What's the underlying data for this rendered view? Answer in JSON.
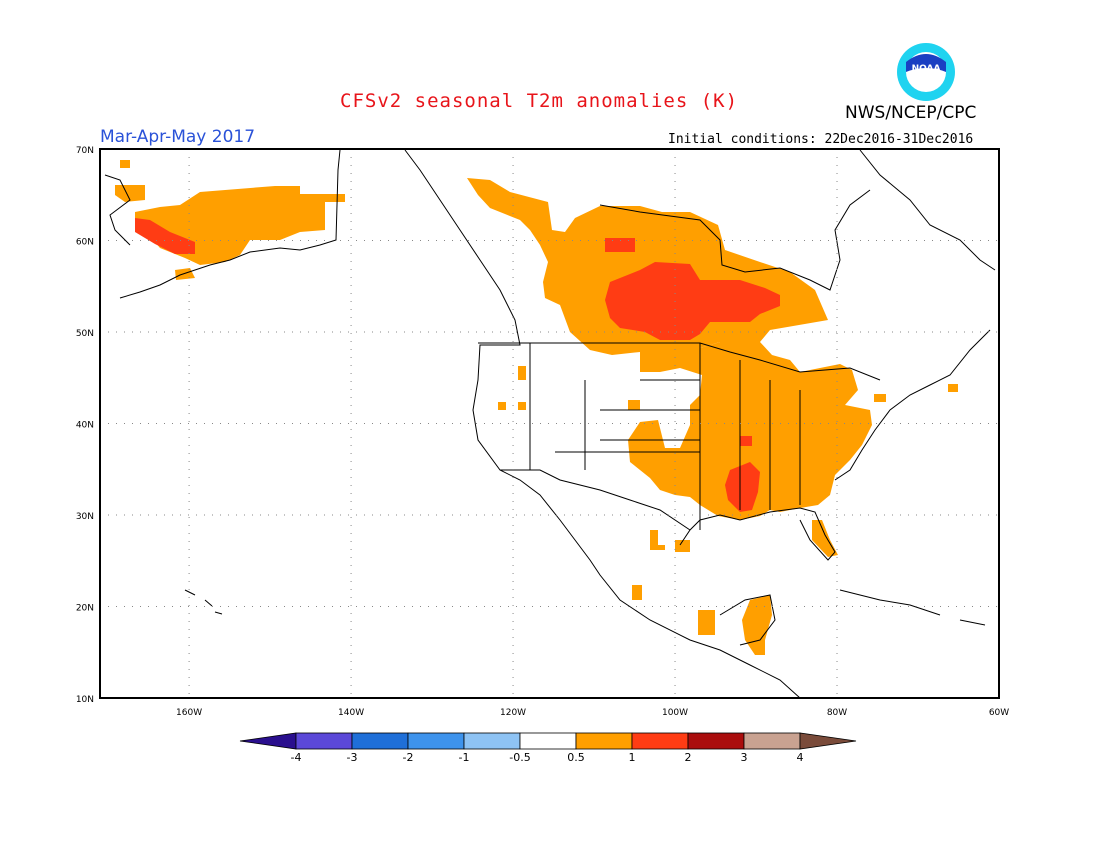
{
  "header": {
    "title": "CFSv2 seasonal T2m anomalies (K)",
    "agency": "NWS/NCEP/CPC",
    "period": "Mar-Apr-May 2017",
    "initial_conditions": "Initial conditions: 22Dec2016-31Dec2016",
    "logo_text": "NOAA"
  },
  "map": {
    "lat_labels": [
      "70N",
      "60N",
      "50N",
      "40N",
      "30N",
      "20N",
      "10N"
    ],
    "lon_labels": [
      "160W",
      "140W",
      "120W",
      "100W",
      "80W",
      "60W"
    ],
    "lon_range": [
      -171,
      -60
    ],
    "lat_range": [
      10,
      70
    ]
  },
  "legend": {
    "labels": [
      "-4",
      "-3",
      "-2",
      "-1",
      "-0.5",
      "0.5",
      "1",
      "2",
      "3",
      "4"
    ],
    "colors": [
      "#2a0f8e",
      "#5b48d8",
      "#1f6fd8",
      "#3e93ec",
      "#8ec3f4",
      "#ffffff",
      "#ff9f00",
      "#ff3c14",
      "#aa0d0d",
      "#c9a291",
      "#7a4b3a"
    ]
  },
  "colors": {
    "anomaly_0_5_to_1": "#ff9f00",
    "anomaly_1_to_2": "#ff3c14",
    "title_red": "#e8141a",
    "period_blue": "#2a52d8"
  }
}
